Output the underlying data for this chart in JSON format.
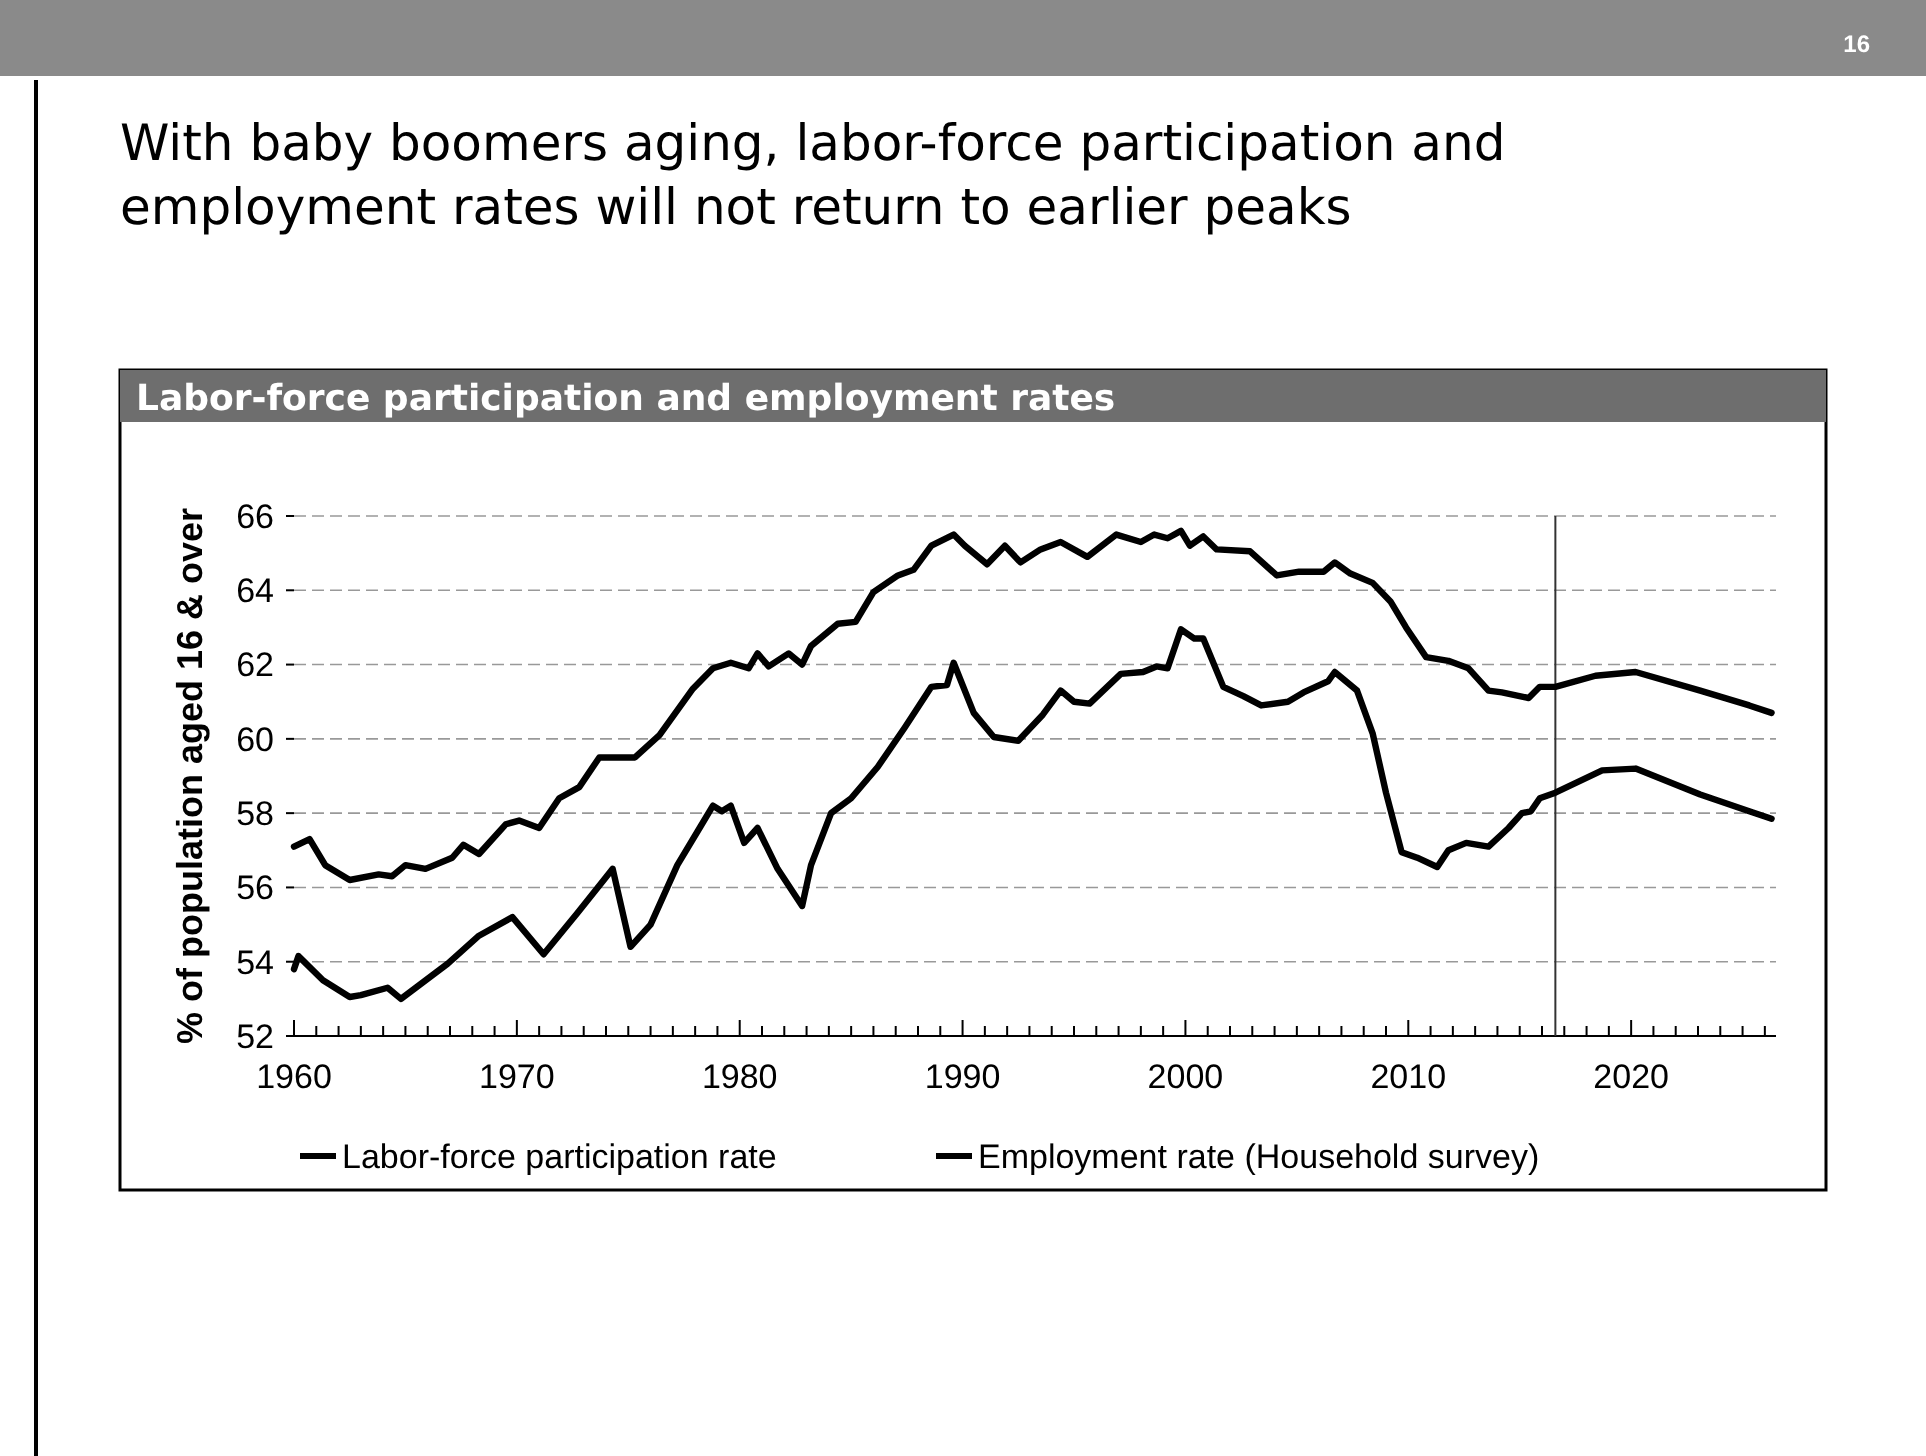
{
  "chart_data": {
    "type": "line",
    "title": "With baby boomers aging, labor-force participation and employment rates will not return to earlier peaks",
    "subtitle": "Labor-force participation and employment rates",
    "ylabel": "% of population aged 16 & over",
    "annotations": [
      "16"
    ],
    "xlim": [
      1960,
      2026.5
    ],
    "xticks": [
      1960,
      {
        "value": 1961,
        "label": null
      },
      {
        "value": 1962,
        "label": null
      },
      {
        "value": 1963,
        "label": null
      },
      {
        "value": 1964,
        "label": null
      },
      {
        "value": 1965,
        "label": null
      },
      {
        "value": 1966,
        "label": null
      },
      {
        "value": 1967,
        "label": null
      },
      {
        "value": 1968,
        "label": null
      },
      {
        "value": 1969,
        "label": null
      },
      1970,
      {
        "value": 1971,
        "label": null
      },
      {
        "value": 1972,
        "label": null
      },
      {
        "value": 1973,
        "label": null
      },
      {
        "value": 1974,
        "label": null
      },
      {
        "value": 1975,
        "label": null
      },
      {
        "value": 1976,
        "label": null
      },
      {
        "value": 1977,
        "label": null
      },
      {
        "value": 1978,
        "label": null
      },
      {
        "value": 1979,
        "label": null
      },
      1980,
      {
        "value": 1981,
        "label": null
      },
      {
        "value": 1982,
        "label": null
      },
      {
        "value": 1983,
        "label": null
      },
      {
        "value": 1984,
        "label": null
      },
      {
        "value": 1985,
        "label": null
      },
      {
        "value": 1986,
        "label": null
      },
      {
        "value": 1987,
        "label": null
      },
      {
        "value": 1988,
        "label": null
      },
      {
        "value": 1989,
        "label": null
      },
      1990,
      {
        "value": 1991,
        "label": null
      },
      {
        "value": 1992,
        "label": null
      },
      {
        "value": 1993,
        "label": null
      },
      {
        "value": 1994,
        "label": null
      },
      {
        "value": 1995,
        "label": null
      },
      {
        "value": 1996,
        "label": null
      },
      {
        "value": 1997,
        "label": null
      },
      {
        "value": 1998,
        "label": null
      },
      {
        "value": 1999,
        "label": null
      },
      2000,
      {
        "value": 2001,
        "label": null
      },
      {
        "value": 2002,
        "label": null
      },
      {
        "value": 2003,
        "label": null
      },
      {
        "value": 2004,
        "label": null
      },
      {
        "value": 2005,
        "label": null
      },
      {
        "value": 2006,
        "label": null
      },
      {
        "value": 2007,
        "label": null
      },
      {
        "value": 2008,
        "label": null
      },
      {
        "value": 2009,
        "label": null
      },
      2010,
      {
        "value": 2011,
        "label": null
      },
      {
        "value": 2012,
        "label": null
      },
      {
        "value": 2013,
        "label": null
      },
      {
        "value": 2014,
        "label": null
      },
      {
        "value": 2015,
        "label": null
      },
      {
        "value": 2016,
        "label": null
      },
      {
        "value": 2017,
        "label": null
      },
      {
        "value": 2018,
        "label": null
      },
      {
        "value": 2019,
        "label": null
      },
      2020,
      {
        "value": 2021,
        "label": null
      },
      {
        "value": 2022,
        "label": null
      },
      {
        "value": 2023,
        "label": null
      },
      {
        "value": 2024,
        "label": null
      },
      {
        "value": 2025,
        "label": null
      },
      {
        "value": 2026,
        "label": null
      }
    ],
    "ylim": [
      52,
      66
    ],
    "yticks": [
      52,
      54,
      56,
      58,
      60,
      62,
      64,
      66
    ],
    "grid": "y",
    "legend": "bottom",
    "line_style": "solid",
    "ref_lines": [
      {
        "axis": "x",
        "value": 2016.6,
        "color": "#333333"
      }
    ],
    "series": [
      {
        "name": "Labor-force participation rate",
        "color": "#000000",
        "x": [
          1960,
          1960.7,
          1961.4,
          1962.5,
          1963.8,
          1964.4,
          1965,
          1965.9,
          1967.1,
          1967.6,
          1968.3,
          1969.5,
          1970.1,
          1971,
          1971.9,
          1972.8,
          1973.7,
          1975.3,
          1976.4,
          1977.9,
          1978.8,
          1979.6,
          1980.4,
          1980.8,
          1981.3,
          1982.2,
          1982.8,
          1983.2,
          1984.4,
          1985.2,
          1986,
          1987.1,
          1987.8,
          1988.6,
          1989.6,
          1990.1,
          1991.1,
          1991.9,
          1992.6,
          1993.5,
          1994.4,
          1995.6,
          1996.9,
          1998,
          1998.6,
          1999.2,
          1999.8,
          2000.2,
          2000.8,
          2001.4,
          2002.9,
          2004.1,
          2005.1,
          2006.2,
          2006.7,
          2007.4,
          2008.4,
          2009.2,
          2009.9,
          2010.8,
          2011.8,
          2012.7,
          2013.6,
          2014.2,
          2015.4,
          2015.9,
          2016.6,
          2018.4,
          2020.2,
          2023.1,
          2025.3,
          2026.3
        ],
        "values": [
          57.1,
          57.3,
          56.6,
          56.2,
          56.35,
          56.3,
          56.6,
          56.5,
          56.8,
          57.15,
          56.9,
          57.7,
          57.8,
          57.6,
          58.4,
          58.7,
          59.5,
          59.5,
          60.1,
          61.35,
          61.9,
          62.05,
          61.9,
          62.3,
          61.95,
          62.3,
          62.0,
          62.5,
          63.1,
          63.15,
          63.95,
          64.4,
          64.55,
          65.2,
          65.5,
          65.2,
          64.7,
          65.2,
          64.75,
          65.1,
          65.3,
          64.9,
          65.5,
          65.3,
          65.5,
          65.4,
          65.6,
          65.2,
          65.45,
          65.1,
          65.05,
          64.4,
          64.5,
          64.5,
          64.75,
          64.45,
          64.2,
          63.7,
          63.0,
          62.2,
          62.1,
          61.9,
          61.3,
          61.25,
          61.1,
          61.4,
          61.4,
          61.7,
          61.8,
          61.3,
          60.9,
          60.7
        ]
      },
      {
        "name": "Employment rate (Household survey)",
        "color": "#000000",
        "x": [
          1960,
          1960.2,
          1961.3,
          1962.5,
          1963,
          1964.2,
          1964.8,
          1966.9,
          1968.3,
          1969.8,
          1971.2,
          1972.7,
          1973.9,
          1974.3,
          1975.1,
          1976,
          1977.2,
          1978.2,
          1978.8,
          1979.2,
          1979.6,
          1980.2,
          1980.8,
          1981.7,
          1982.8,
          1983.2,
          1984.1,
          1985,
          1986.2,
          1987.4,
          1988.6,
          1989.3,
          1989.6,
          1990.5,
          1991.4,
          1992.5,
          1993.6,
          1994.4,
          1995,
          1995.7,
          1997.1,
          1998.1,
          1998.7,
          1999.2,
          1999.8,
          2000.4,
          2000.8,
          2001.7,
          2002.6,
          2003.4,
          2004.6,
          2005.3,
          2006.4,
          2006.7,
          2007.7,
          2008.4,
          2009,
          2009.7,
          2010.4,
          2011.3,
          2011.8,
          2012.6,
          2013.6,
          2014.5,
          2015.1,
          2015.5,
          2015.9,
          2016.6,
          2018.7,
          2020.2,
          2023.1,
          2025.3,
          2026.3
        ],
        "values": [
          53.8,
          54.15,
          53.5,
          53.05,
          53.1,
          53.3,
          53.0,
          53.95,
          54.7,
          55.2,
          54.2,
          55.3,
          56.2,
          56.5,
          54.4,
          55.0,
          56.6,
          57.6,
          58.2,
          58.05,
          58.2,
          57.2,
          57.6,
          56.5,
          55.5,
          56.6,
          58.0,
          58.4,
          59.25,
          60.3,
          61.4,
          61.45,
          62.05,
          60.7,
          60.05,
          59.95,
          60.65,
          61.3,
          61.0,
          60.95,
          61.75,
          61.8,
          61.95,
          61.9,
          62.95,
          62.7,
          62.7,
          61.4,
          61.15,
          60.9,
          61.0,
          61.25,
          61.55,
          61.8,
          61.3,
          60.15,
          58.55,
          56.95,
          56.8,
          56.55,
          57.0,
          57.2,
          57.1,
          57.6,
          58.0,
          58.05,
          58.4,
          58.55,
          59.15,
          59.2,
          58.5,
          58.05,
          57.85
        ]
      }
    ]
  }
}
